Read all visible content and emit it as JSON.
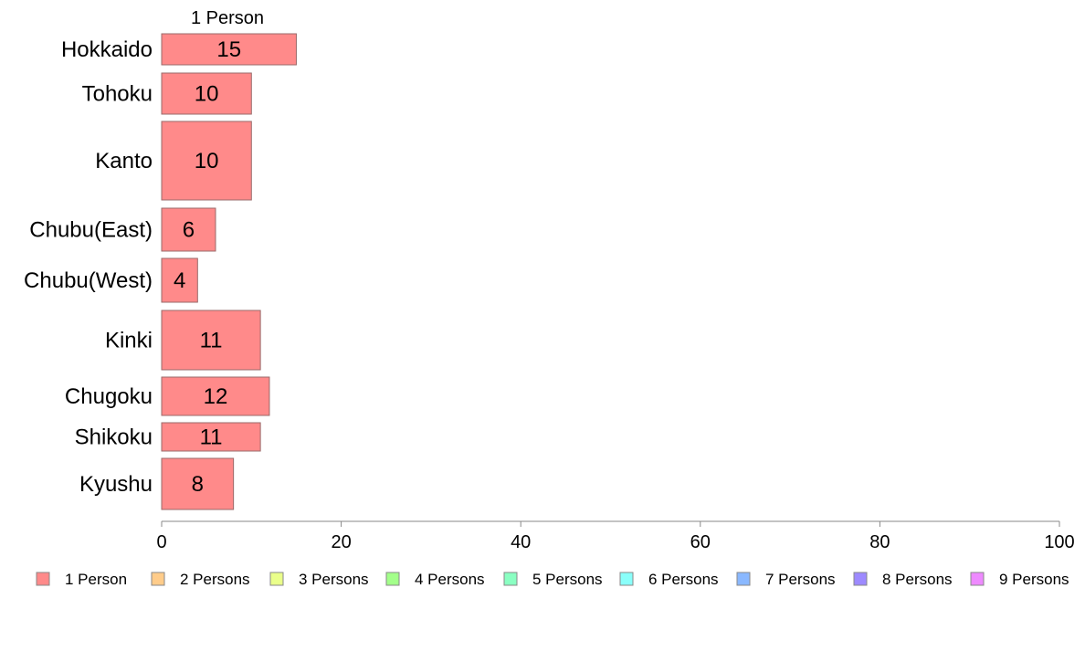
{
  "chart_data": {
    "type": "bar",
    "orientation": "horizontal",
    "stacked": true,
    "variable_width": true,
    "series_header": "1 Person",
    "categories": [
      "Hokkaido",
      "Tohoku",
      "Kanto",
      "Chubu(East)",
      "Chubu(West)",
      "Kinki",
      "Chugoku",
      "Shikoku",
      "Kyushu"
    ],
    "series": [
      {
        "name": "1 Person",
        "color": "#ff8a8a",
        "values": [
          15,
          10,
          10,
          6,
          4,
          11,
          12,
          11,
          8
        ]
      }
    ],
    "data_labels": [
      "15",
      "10",
      "10",
      "6",
      "4",
      "11",
      "12",
      "11",
      "8"
    ],
    "xlim": [
      0,
      100
    ],
    "x_ticks": [
      0,
      20,
      40,
      60,
      80,
      100
    ],
    "x_tick_labels": [
      "0",
      "20",
      "40",
      "60",
      "80",
      "100"
    ],
    "legend_position": "bottom",
    "legend": [
      {
        "label": "1 Person",
        "color": "#ff8a8a"
      },
      {
        "label": "2 Persons",
        "color": "#ffcc8a"
      },
      {
        "label": "3 Persons",
        "color": "#eaff8a"
      },
      {
        "label": "4 Persons",
        "color": "#a3ff8a"
      },
      {
        "label": "5 Persons",
        "color": "#8affc2"
      },
      {
        "label": "6 Persons",
        "color": "#8afffa"
      },
      {
        "label": "7 Persons",
        "color": "#8ab8ff"
      },
      {
        "label": "8 Persons",
        "color": "#9d8aff"
      },
      {
        "label": "9 Persons",
        "color": "#ee8aff"
      }
    ]
  }
}
